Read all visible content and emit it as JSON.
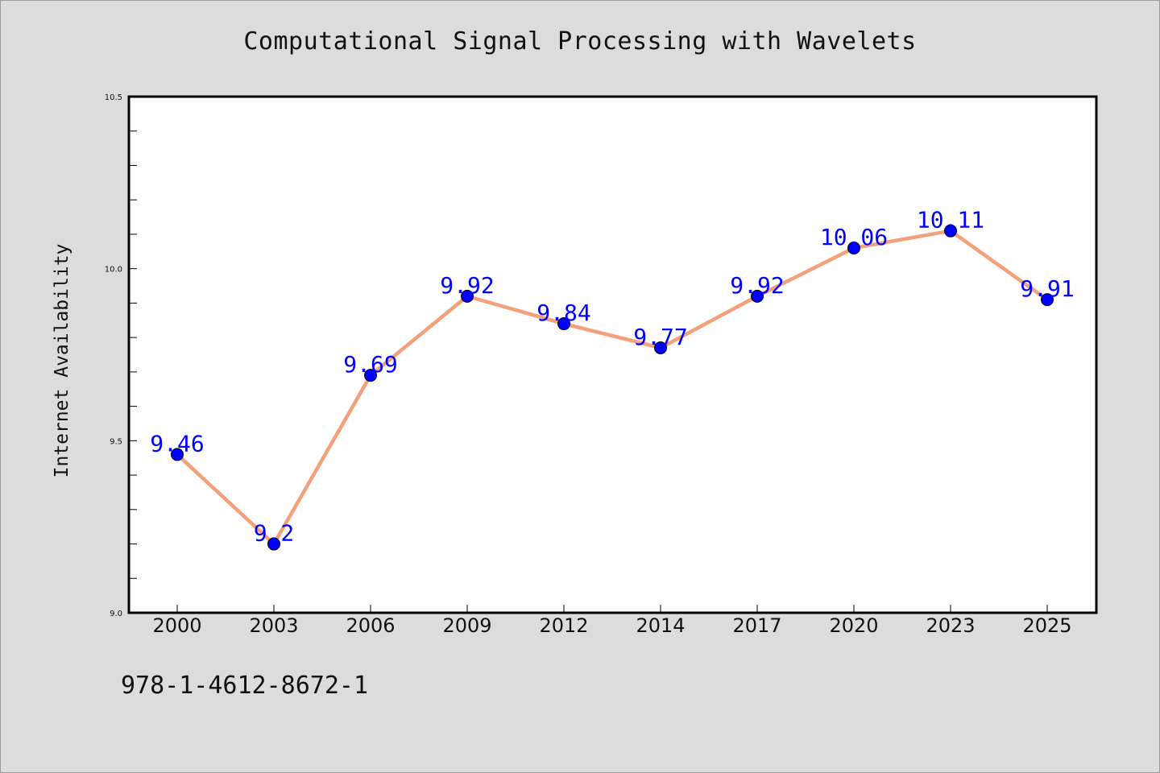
{
  "chart_data": {
    "type": "line",
    "title": "Computational Signal Processing with Wavelets",
    "xlabel": "",
    "ylabel": "Internet Availability",
    "categories": [
      "2000",
      "2003",
      "2006",
      "2009",
      "2012",
      "2014",
      "2017",
      "2020",
      "2023",
      "2025"
    ],
    "series": [
      {
        "values": [
          9.46,
          9.2,
          9.69,
          9.92,
          9.84,
          9.77,
          9.92,
          10.06,
          10.11,
          9.91
        ],
        "data_labels": [
          "9.46",
          "9.2",
          "9.69",
          "9.92",
          "9.84",
          "9.77",
          "9.92",
          "10.06",
          "10.11",
          "9.91"
        ]
      }
    ],
    "ylim": [
      9.0,
      10.5
    ],
    "y_tick_labels": [
      "9.0",
      "9.5",
      "10.0",
      "10.5"
    ],
    "grid": false,
    "colors": {
      "line": "#f4a07a",
      "marker": "#0000ff",
      "data_label": "#0000ff",
      "plot_background": "#ffffff",
      "page_background": "#dcdcdc"
    }
  },
  "footer": {
    "isbn": "978-1-4612-8672-1"
  }
}
